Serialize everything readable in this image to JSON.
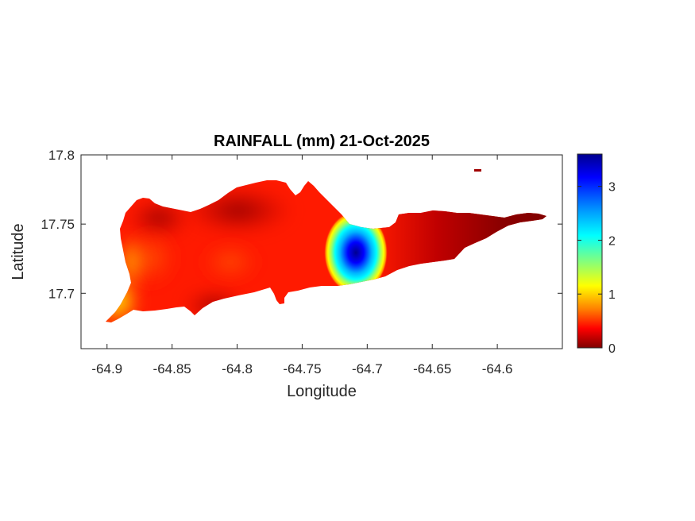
{
  "chart_data": {
    "type": "heatmap",
    "title": "RAINFALL (mm) 21-Oct-2025",
    "xlabel": "Longitude",
    "ylabel": "Latitude",
    "xlim": [
      -64.92,
      -64.55
    ],
    "ylim": [
      17.66,
      17.8
    ],
    "x_ticks": [
      -64.9,
      -64.85,
      -64.8,
      -64.75,
      -64.7,
      -64.65,
      -64.6
    ],
    "x_tick_labels": [
      "-64.9",
      "-64.85",
      "-64.8",
      "-64.75",
      "-64.7",
      "-64.65",
      "-64.6"
    ],
    "y_ticks": [
      17.7,
      17.75,
      17.8
    ],
    "y_tick_labels": [
      "17.7",
      "17.75",
      "17.8"
    ],
    "colorbar": {
      "colormap": "jet-reversed",
      "range": [
        0,
        3.6
      ],
      "ticks": [
        0,
        1,
        2,
        3
      ],
      "tick_labels": [
        "0",
        "1",
        "2",
        "3"
      ]
    },
    "rainfall_peak": {
      "lon": -64.711,
      "lat": 17.728,
      "value": 3.6
    },
    "grid": false
  }
}
